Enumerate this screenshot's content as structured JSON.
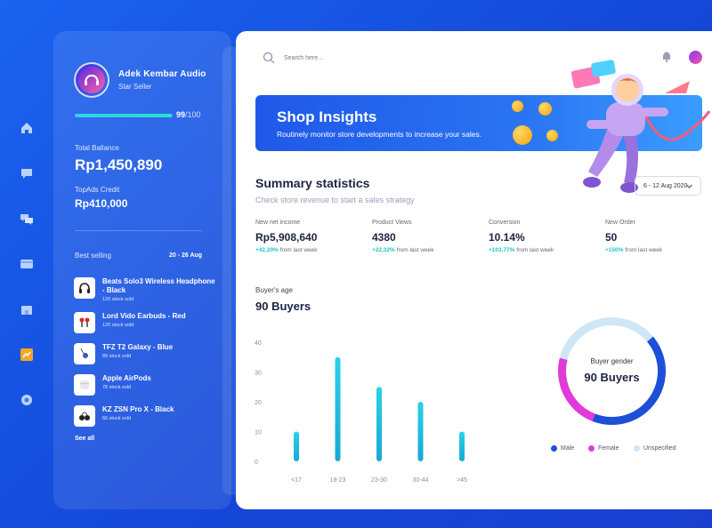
{
  "profile": {
    "store_name": "Adek Kembar Audio",
    "tier": "Star Seller",
    "score": 99,
    "score_max": "/100"
  },
  "balance": {
    "label": "Total Ballance",
    "value": "Rp1,450,890",
    "credit_label": "TopAds Credit",
    "credit_value": "Rp410,000"
  },
  "best_selling": {
    "label": "Best selling",
    "range": "20 - 26 Aug",
    "see_all": "See all",
    "items": [
      {
        "name": "Beats Solo3 Wireless Headphone - Black",
        "stock": "120 stock sold"
      },
      {
        "name": "Lord Vido Earbuds - Red",
        "stock": "120 stock sold"
      },
      {
        "name": "TFZ T2 Galaxy - Blue",
        "stock": "89 stock sold"
      },
      {
        "name": "Apple AirPods",
        "stock": "78 stock sold"
      },
      {
        "name": "KZ ZSN Pro X - Black",
        "stock": "66 stock sold"
      }
    ]
  },
  "nav_icons": [
    "home-icon",
    "chat-icon",
    "discussion-icon",
    "wallet-icon",
    "store-icon",
    "statistics-icon",
    "settings-icon"
  ],
  "header": {
    "search_placeholder": "Search here..."
  },
  "banner": {
    "title": "Shop Insights",
    "subtitle": "Routinely monitor store developments to increase your sales."
  },
  "summary": {
    "title": "Summary statistics",
    "subtitle": "Check store revenue to start a sales strategy",
    "date_range": "6 - 12 Aug 2020",
    "stats": [
      {
        "label": "New net income",
        "value": "Rp5,908,640",
        "change": "+42,20%",
        "suffix": " from last week"
      },
      {
        "label": "Product Views",
        "value": "4380",
        "change": "+22,32%",
        "suffix": " from last week"
      },
      {
        "label": "Conversion",
        "value": "10.14%",
        "change": "+103.77%",
        "suffix": " from last week"
      },
      {
        "label": "New Order",
        "value": "50",
        "change": "+150%",
        "suffix": " from last week"
      }
    ]
  },
  "buyers": {
    "age_label": "Buyer's age",
    "age_total": "90 Buyers",
    "gender_label": "Buyer gender",
    "gender_total": "90 Buyers"
  },
  "colors": {
    "male": "#1d4fd8",
    "female": "#e03ad8",
    "unspecified": "#cfe6f7",
    "bar": "#1fc6d9"
  },
  "chart_data": [
    {
      "type": "bar",
      "title": "Buyer's age",
      "categories": [
        "<17",
        "18-23",
        "23-30",
        "30-44",
        ">45"
      ],
      "values": [
        10,
        35,
        25,
        20,
        10
      ],
      "ylim": [
        0,
        40
      ],
      "yticks": [
        0,
        10,
        20,
        30,
        40
      ],
      "grid": false
    },
    {
      "type": "pie",
      "title": "Buyer gender",
      "categories": [
        "Male",
        "Female",
        "Unspecified"
      ],
      "values": [
        42,
        23,
        35
      ],
      "legend": "bottom"
    }
  ]
}
